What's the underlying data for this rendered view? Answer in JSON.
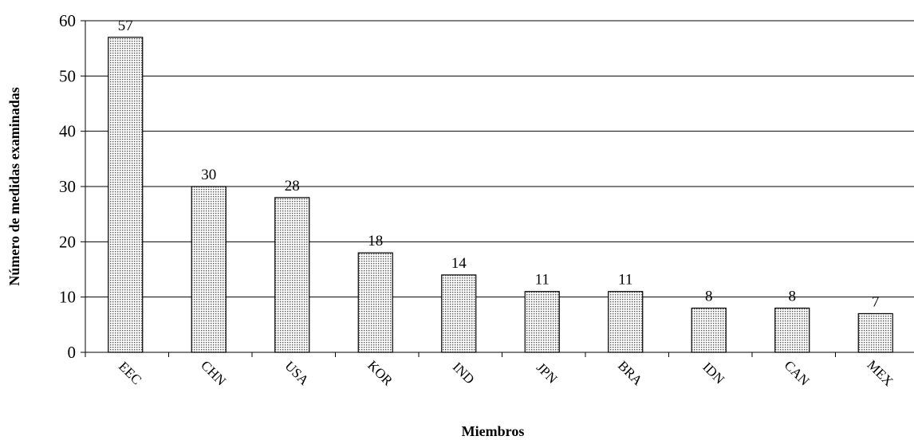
{
  "chart_data": {
    "type": "bar",
    "categories": [
      "EEC",
      "CHN",
      "USA",
      "KOR",
      "IND",
      "JPN",
      "BRA",
      "IDN",
      "CAN",
      "MEX"
    ],
    "values": [
      57,
      30,
      28,
      18,
      14,
      11,
      11,
      8,
      8,
      7
    ],
    "ylabel": "Número de medidas examinadas",
    "xlabel": "Miembros",
    "ylim": [
      0,
      60
    ],
    "yticks": [
      0,
      10,
      20,
      30,
      40,
      50,
      60
    ],
    "grid": true,
    "bar_fill": "dotted",
    "colors": {
      "bar_stroke": "#000000",
      "bar_dots": "#555555",
      "grid": "#000000"
    }
  }
}
